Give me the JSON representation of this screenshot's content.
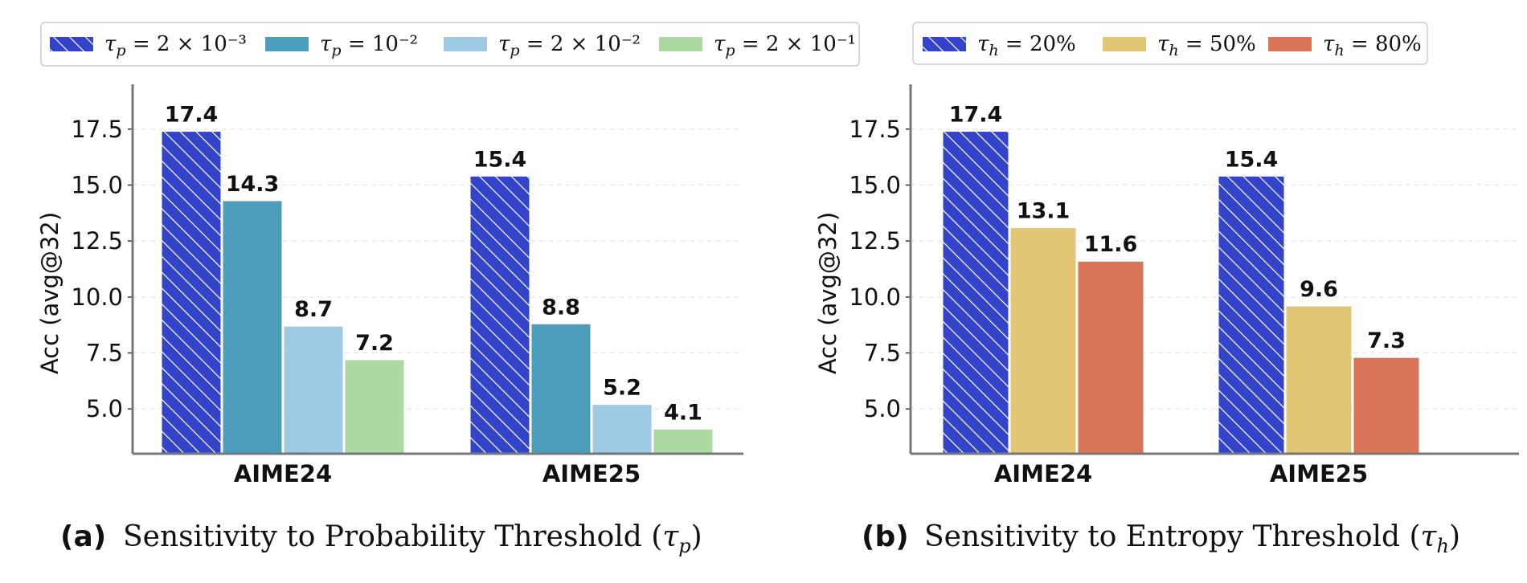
{
  "chart_data": [
    {
      "type": "bar",
      "panel_label": "(a)",
      "caption": "Sensitivity to Probability Threshold (τp)",
      "ylabel": "Acc (avg@32)",
      "xlabel": "",
      "ylim": [
        3.0,
        19.5
      ],
      "yticks": [
        5.0,
        7.5,
        10.0,
        12.5,
        15.0,
        17.5
      ],
      "ytick_labels": [
        "5.0",
        "7.5",
        "10.0",
        "12.5",
        "15.0",
        "17.5"
      ],
      "grid": "horizontal dashed",
      "legend_position": "top",
      "categories": [
        "AIME24",
        "AIME25"
      ],
      "series": [
        {
          "name": "τp = 2 × 10⁻³",
          "values": [
            17.4,
            15.4
          ],
          "labels": [
            "17.4",
            "15.4"
          ],
          "color": "#3344c8",
          "hatch": true
        },
        {
          "name": "τp = 10⁻²",
          "values": [
            14.3,
            8.8
          ],
          "labels": [
            "14.3",
            "8.8"
          ],
          "color": "#4c9cbb",
          "hatch": false
        },
        {
          "name": "τp = 2 × 10⁻²",
          "values": [
            8.7,
            5.2
          ],
          "labels": [
            "8.7",
            "5.2"
          ],
          "color": "#9fcae4",
          "hatch": false
        },
        {
          "name": "τp = 2 × 10⁻¹",
          "values": [
            7.2,
            4.1
          ],
          "labels": [
            "7.2",
            "4.1"
          ],
          "color": "#acd9a1",
          "hatch": false
        }
      ]
    },
    {
      "type": "bar",
      "panel_label": "(b)",
      "caption": "Sensitivity to Entropy Threshold (τh)",
      "ylabel": "Acc (avg@32)",
      "xlabel": "",
      "ylim": [
        3.0,
        19.5
      ],
      "yticks": [
        5.0,
        7.5,
        10.0,
        12.5,
        15.0,
        17.5
      ],
      "ytick_labels": [
        "5.0",
        "7.5",
        "10.0",
        "12.5",
        "15.0",
        "17.5"
      ],
      "grid": "horizontal dashed",
      "legend_position": "top",
      "categories": [
        "AIME24",
        "AIME25"
      ],
      "series": [
        {
          "name": "τh = 20%",
          "values": [
            17.4,
            15.4
          ],
          "labels": [
            "17.4",
            "15.4"
          ],
          "color": "#3344c8",
          "hatch": true
        },
        {
          "name": "τh = 50%",
          "values": [
            13.1,
            9.6
          ],
          "labels": [
            "13.1",
            "9.6"
          ],
          "color": "#e2c575",
          "hatch": false
        },
        {
          "name": "τh = 80%",
          "values": [
            11.6,
            7.3
          ],
          "labels": [
            "11.6",
            "7.3"
          ],
          "color": "#d87558",
          "hatch": false
        }
      ]
    }
  ]
}
